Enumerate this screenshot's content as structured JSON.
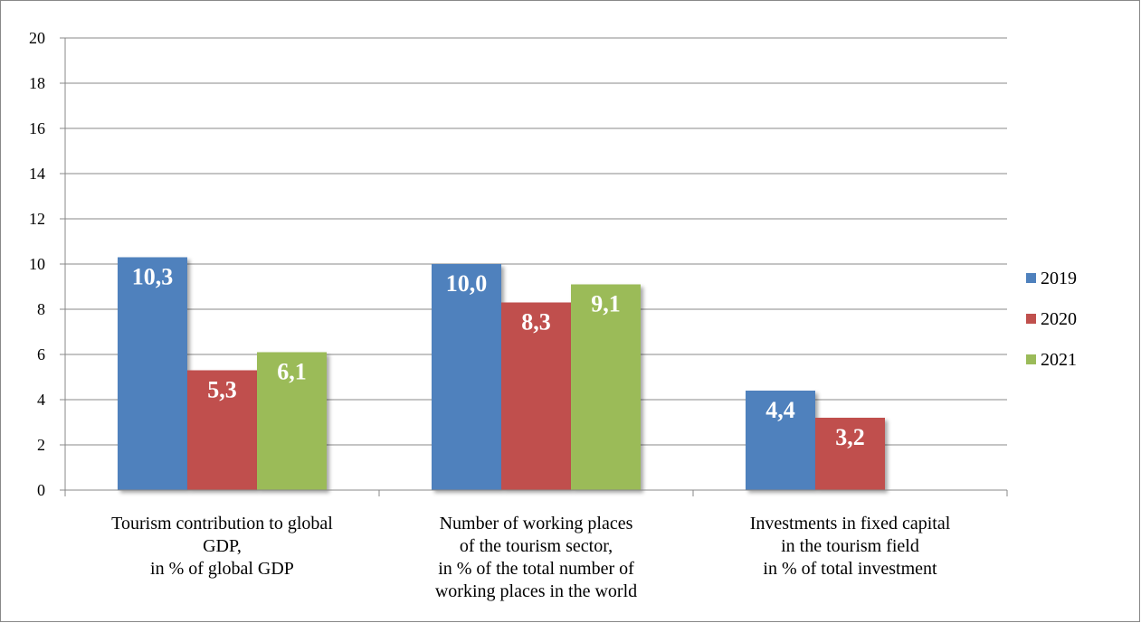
{
  "chart_data": {
    "type": "bar",
    "categories": [
      "Tourism contribution to global\nGDP,\nin % of global GDP",
      "Number of working places\nof the tourism sector,\nin % of the total number of\nworking places in the world",
      "Investments in fixed capital\nin the tourism field\nin % of total investment"
    ],
    "series": [
      {
        "name": "2019",
        "color": "#4f81bd",
        "values": [
          10.3,
          10.0,
          4.4
        ],
        "value_labels": [
          "10,3",
          "10,0",
          "4,4"
        ]
      },
      {
        "name": "2020",
        "color": "#c0504d",
        "values": [
          5.3,
          8.3,
          3.2
        ],
        "value_labels": [
          "5,3",
          "8,3",
          "3,2"
        ]
      },
      {
        "name": "2021",
        "color": "#9bbb59",
        "values": [
          6.1,
          9.1,
          null
        ],
        "value_labels": [
          "6,1",
          "9,1",
          null
        ]
      }
    ],
    "ylim": [
      0,
      20
    ],
    "yticks": [
      0,
      2,
      4,
      6,
      8,
      10,
      12,
      14,
      16,
      18,
      20
    ],
    "grid": true,
    "legend": "right"
  }
}
